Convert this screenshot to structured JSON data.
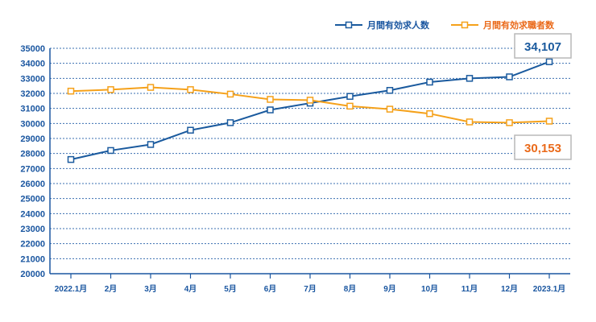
{
  "chart_data": {
    "type": "line",
    "categories": [
      "2022.1月",
      "2月",
      "3月",
      "4月",
      "5月",
      "6月",
      "7月",
      "8月",
      "9月",
      "10月",
      "11月",
      "12月",
      "2023.1月"
    ],
    "ylim": [
      20000,
      35000
    ],
    "yticks": [
      20000,
      21000,
      22000,
      23000,
      24000,
      25000,
      26000,
      27000,
      28000,
      29000,
      30000,
      31000,
      32000,
      33000,
      34000,
      35000
    ],
    "grid": true,
    "legend_position": "top-right",
    "series": [
      {
        "name": "月間有効求人数",
        "color": "#1a5a9e",
        "values": [
          27600,
          28200,
          28600,
          29550,
          30050,
          30900,
          31350,
          31800,
          32200,
          32750,
          33000,
          33100,
          34107
        ]
      },
      {
        "name": "月間有効求職者数",
        "color": "#f5a11a",
        "values": [
          32150,
          32250,
          32400,
          32250,
          31950,
          31600,
          31550,
          31150,
          30950,
          30650,
          30100,
          30050,
          30153
        ]
      }
    ],
    "annotations": [
      {
        "text": "34,107",
        "series": 0,
        "color": "#1a5a9e"
      },
      {
        "text": "30,153",
        "series": 1,
        "color": "#ea6a1a"
      }
    ]
  }
}
